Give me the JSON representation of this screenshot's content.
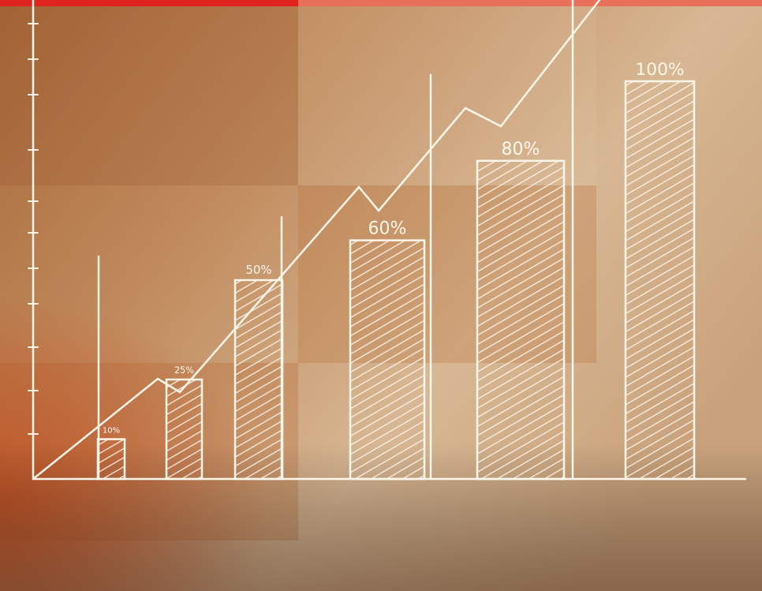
{
  "chart_data": {
    "type": "bar",
    "categories": [
      null,
      null,
      null,
      null,
      null,
      null
    ],
    "values": [
      10,
      25,
      50,
      60,
      80,
      100
    ],
    "value_labels": [
      "10%",
      "25%",
      "50%",
      "60%",
      "80%",
      "100%"
    ],
    "color": "#fff6ea",
    "ylim": [
      0,
      100
    ]
  }
}
